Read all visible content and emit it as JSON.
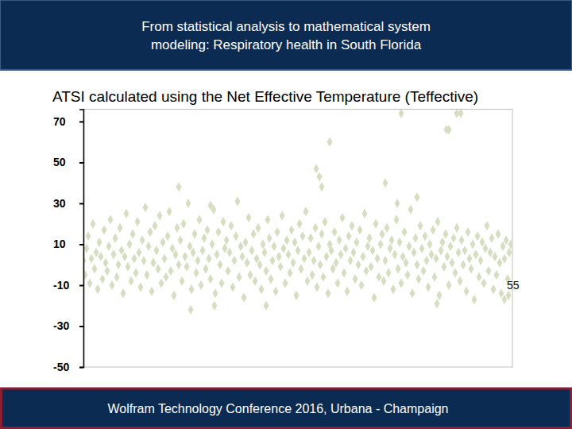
{
  "header": {
    "title_lines": [
      "From statistical analysis to mathematical system",
      "modeling: Respiratory health in South Florida"
    ]
  },
  "chart_data": {
    "type": "scatter",
    "title": "ATSI calculated using the Net Effective Temperature (Teffective)",
    "marker": "diamond",
    "color": "#d5dec0",
    "grid": false,
    "tick_labels": "y",
    "annotations": [
      "55"
    ],
    "xlim": [
      0,
      540
    ],
    "ylim": [
      -50,
      76
    ],
    "yticks": [
      70,
      50,
      30,
      10,
      -10,
      -30,
      -50
    ],
    "x": [
      0,
      2,
      4,
      6,
      8,
      10,
      12,
      14,
      16,
      18,
      20,
      22,
      24,
      26,
      28,
      30,
      32,
      34,
      36,
      38,
      40,
      42,
      44,
      46,
      48,
      50,
      52,
      54,
      56,
      58,
      60,
      62,
      64,
      66,
      68,
      70,
      72,
      74,
      76,
      78,
      80,
      82,
      84,
      86,
      88,
      90,
      92,
      94,
      96,
      98,
      100,
      102,
      104,
      106,
      108,
      110,
      112,
      114,
      116,
      118,
      120,
      122,
      124,
      126,
      128,
      130,
      132,
      134,
      136,
      138,
      140,
      142,
      144,
      146,
      148,
      150,
      152,
      154,
      156,
      158,
      160,
      162,
      164,
      166,
      168,
      170,
      172,
      174,
      176,
      178,
      180,
      182,
      184,
      186,
      188,
      190,
      192,
      194,
      196,
      198,
      200,
      202,
      204,
      206,
      208,
      210,
      212,
      214,
      216,
      218,
      220,
      222,
      224,
      226,
      228,
      230,
      232,
      234,
      236,
      238,
      240,
      242,
      244,
      246,
      248,
      250,
      252,
      254,
      256,
      258,
      260,
      262,
      264,
      266,
      268,
      270,
      272,
      274,
      276,
      278,
      280,
      282,
      284,
      286,
      288,
      290,
      292,
      294,
      296,
      298,
      300,
      302,
      304,
      306,
      308,
      310,
      312,
      314,
      316,
      318,
      320,
      322,
      324,
      326,
      328,
      330,
      332,
      334,
      336,
      338,
      340,
      342,
      344,
      346,
      348,
      350,
      352,
      354,
      356,
      358,
      360,
      362,
      364,
      366,
      368,
      370,
      372,
      374,
      376,
      378,
      380,
      382,
      384,
      386,
      388,
      390,
      392,
      394,
      396,
      398,
      400,
      402,
      404,
      406,
      408,
      410,
      412,
      414,
      416,
      418,
      420,
      422,
      424,
      426,
      428,
      430,
      432,
      434,
      436,
      438,
      440,
      442,
      444,
      446,
      448,
      450,
      452,
      454,
      456,
      458,
      460,
      462,
      464,
      466,
      468,
      470,
      472,
      474,
      476,
      478,
      480,
      482,
      484,
      486,
      488,
      490,
      492,
      494,
      496,
      498,
      500,
      502,
      504,
      506,
      508,
      510,
      512,
      514,
      516,
      518,
      520,
      522,
      524,
      526,
      528,
      530,
      532,
      534,
      536,
      538,
      400,
      470,
      475,
      457,
      460,
      310,
      293,
      297,
      300,
      380,
      120,
      420,
      160,
      395,
      135,
      165,
      530,
      535,
      230,
      445
    ],
    "y": [
      2,
      -5,
      8,
      14,
      -9,
      3,
      20,
      -2,
      6,
      -12,
      11,
      4,
      -7,
      17,
      1,
      -3,
      9,
      22,
      -10,
      5,
      13,
      -6,
      0,
      18,
      7,
      -14,
      4,
      25,
      -1,
      10,
      -8,
      15,
      3,
      -4,
      21,
      6,
      -11,
      12,
      2,
      28,
      -5,
      9,
      16,
      -13,
      1,
      19,
      7,
      -2,
      24,
      -9,
      11,
      3,
      -6,
      14,
      26,
      -3,
      8,
      -15,
      5,
      18,
      0,
      12,
      -8,
      20,
      4,
      -1,
      30,
      9,
      -12,
      6,
      15,
      -4,
      2,
      22,
      -10,
      7,
      13,
      -2,
      17,
      3,
      -7,
      10,
      27,
      -14,
      5,
      16,
      0,
      -9,
      21,
      8,
      12,
      -3,
      6,
      19,
      -11,
      2,
      14,
      31,
      -6,
      9,
      4,
      -16,
      11,
      1,
      23,
      -5,
      7,
      15,
      -8,
      3,
      18,
      0,
      -12,
      10,
      6,
      -3,
      22,
      13,
      -7,
      2,
      9,
      -13,
      16,
      4,
      -1,
      24,
      8,
      -9,
      12,
      5,
      -4,
      17,
      1,
      11,
      -15,
      7,
      20,
      -2,
      14,
      3,
      26,
      -8,
      6,
      13,
      -5,
      2,
      18,
      -11,
      9,
      0,
      15,
      -6,
      21,
      4,
      -14,
      10,
      7,
      -2,
      16,
      1,
      -9,
      12,
      5,
      23,
      -4,
      8,
      -13,
      14,
      2,
      19,
      6,
      -7,
      11,
      0,
      17,
      -10,
      4,
      25,
      -3,
      9,
      13,
      -1,
      7,
      -16,
      20,
      3,
      -6,
      10,
      15,
      -8,
      2,
      18,
      -4,
      8,
      12,
      -12,
      5,
      22,
      -2,
      11,
      -9,
      4,
      16,
      1,
      -5,
      9,
      27,
      -14,
      6,
      13,
      0,
      -7,
      19,
      8,
      -3,
      14,
      2,
      -11,
      10,
      5,
      17,
      -6,
      3,
      21,
      -15,
      7,
      11,
      -1,
      15,
      4,
      -10,
      9,
      1,
      13,
      -4,
      18,
      6,
      -8,
      12,
      0,
      7,
      -13,
      16,
      3,
      -2,
      10,
      -17,
      5,
      14,
      -6,
      2,
      11,
      -9,
      8,
      19,
      -3,
      6,
      13,
      -12,
      4,
      -5,
      15,
      1,
      -14,
      9,
      3,
      12,
      -7,
      6,
      10,
      74,
      74,
      74,
      66,
      66,
      60,
      47,
      43,
      38,
      40,
      38,
      33,
      29,
      30,
      -22,
      -20,
      -17,
      -15,
      -20,
      -19
    ]
  },
  "footer": {
    "text": "Wolfram Technology Conference 2016, Urbana - Champaign"
  }
}
